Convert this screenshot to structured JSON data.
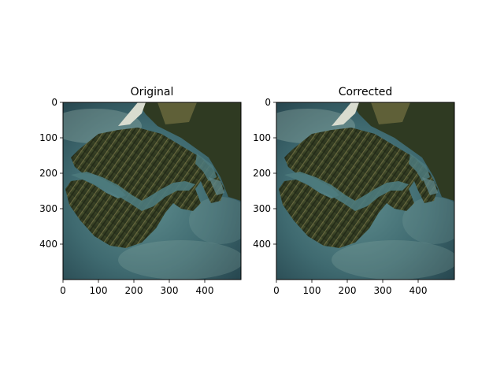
{
  "panels": [
    {
      "title": "Original",
      "x_ticks": [
        "0",
        "100",
        "200",
        "300",
        "400"
      ],
      "y_ticks": [
        "0",
        "100",
        "200",
        "300",
        "400"
      ]
    },
    {
      "title": "Corrected",
      "x_ticks": [
        "0",
        "100",
        "200",
        "300",
        "400"
      ],
      "y_ticks": [
        "0",
        "100",
        "200",
        "300",
        "400"
      ]
    }
  ],
  "colors": {
    "ocean_deep": "#23414a",
    "ocean_light": "#5f8d8e",
    "sediment": "#9fb7b0",
    "land_dark": "#27301c",
    "land_mid": "#4b5530",
    "ridge": "#7a7448",
    "beach": "#d9dccf"
  }
}
